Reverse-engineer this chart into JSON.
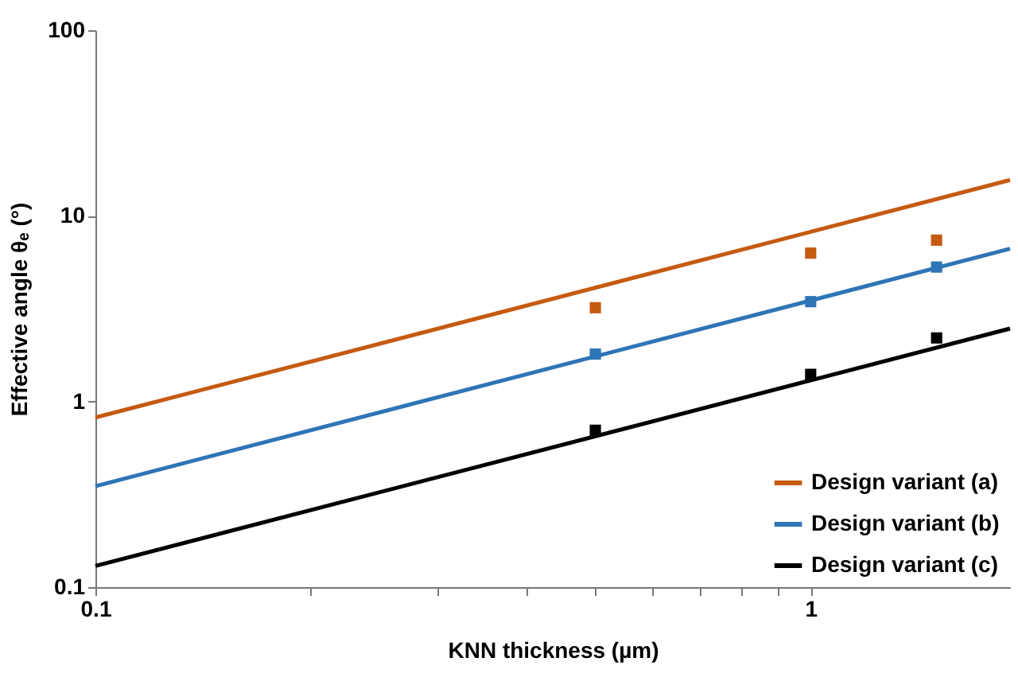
{
  "chart_data": {
    "type": "line",
    "xlabel": "KNN thickness (µm)",
    "ylabel": "Effective angle θₑ (°)",
    "log": "xy",
    "grid": false,
    "legend": "bottom right",
    "xlim": [
      0.1,
      1.9
    ],
    "xticks": [
      0.1,
      {
        "value": 0.2,
        "label": null
      },
      {
        "value": 0.3,
        "label": null
      },
      {
        "value": 0.4,
        "label": null
      },
      {
        "value": 0.5,
        "label": null
      },
      {
        "value": 0.6,
        "label": null
      },
      {
        "value": 0.7,
        "label": null
      },
      {
        "value": 0.8,
        "label": null
      },
      {
        "value": 0.9,
        "label": null
      },
      1
    ],
    "ylim": [
      0.1,
      100
    ],
    "yticks": [
      0.1,
      1,
      10,
      100
    ],
    "series": [
      {
        "name": "Design variant (a)",
        "color": "#c55a11",
        "x": [
          0.1,
          1,
          1.9
        ],
        "values": [
          0.82,
          8.2,
          15.6
        ]
      },
      {
        "name": "Design variant (b)",
        "color": "#2e75b6",
        "x": [
          0.1,
          1,
          1.9
        ],
        "values": [
          0.35,
          3.5,
          6.65
        ]
      },
      {
        "name": "Design variant (c)",
        "color": "#000000",
        "x": [
          0.1,
          1,
          1.9
        ],
        "values": [
          0.13,
          1.3,
          2.47
        ]
      },
      {
        "type": "scatter",
        "marker": "square",
        "color": "#c55a11",
        "x": [
          0.5,
          1,
          1.5
        ],
        "values": [
          3.2,
          6.3,
          7.4
        ]
      },
      {
        "type": "scatter",
        "marker": "square",
        "color": "#2e75b6",
        "x": [
          0.5,
          1,
          1.5
        ],
        "values": [
          1.8,
          3.45,
          5.3
        ]
      },
      {
        "type": "scatter",
        "marker": "square",
        "color": "#000000",
        "x": [
          0.5,
          1,
          1.5
        ],
        "values": [
          0.7,
          1.4,
          2.2
        ]
      }
    ]
  }
}
